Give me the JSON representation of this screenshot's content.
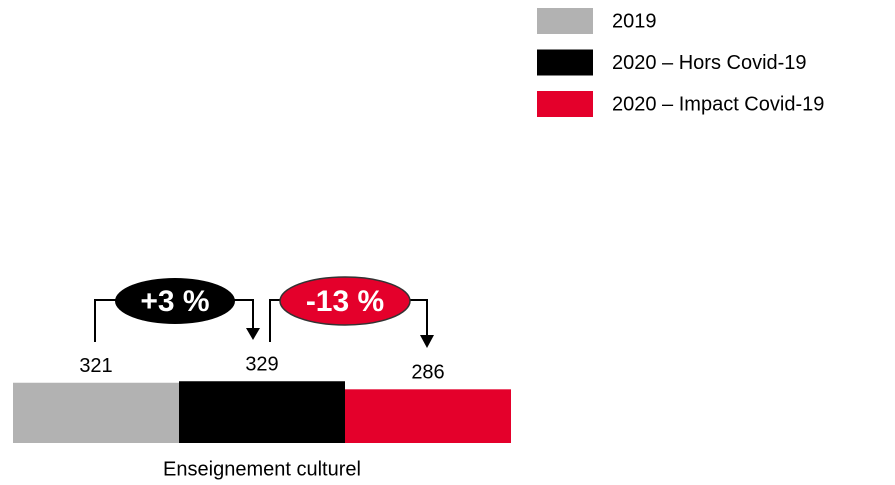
{
  "chart_data": {
    "type": "bar",
    "categories": [
      "Enseignement culturel"
    ],
    "series": [
      {
        "name": "2019",
        "color": "#b2b2b2",
        "values": [
          321
        ]
      },
      {
        "name": "2020 – Hors Covid-19",
        "color": "#000000",
        "values": [
          329
        ]
      },
      {
        "name": "2020 – Impact Covid-19",
        "color": "#e4002b",
        "values": [
          286
        ]
      }
    ],
    "annotations": [
      "+3 %",
      "-13 %"
    ],
    "ylim": [
      0,
      2360
    ],
    "legend": "top-right"
  }
}
